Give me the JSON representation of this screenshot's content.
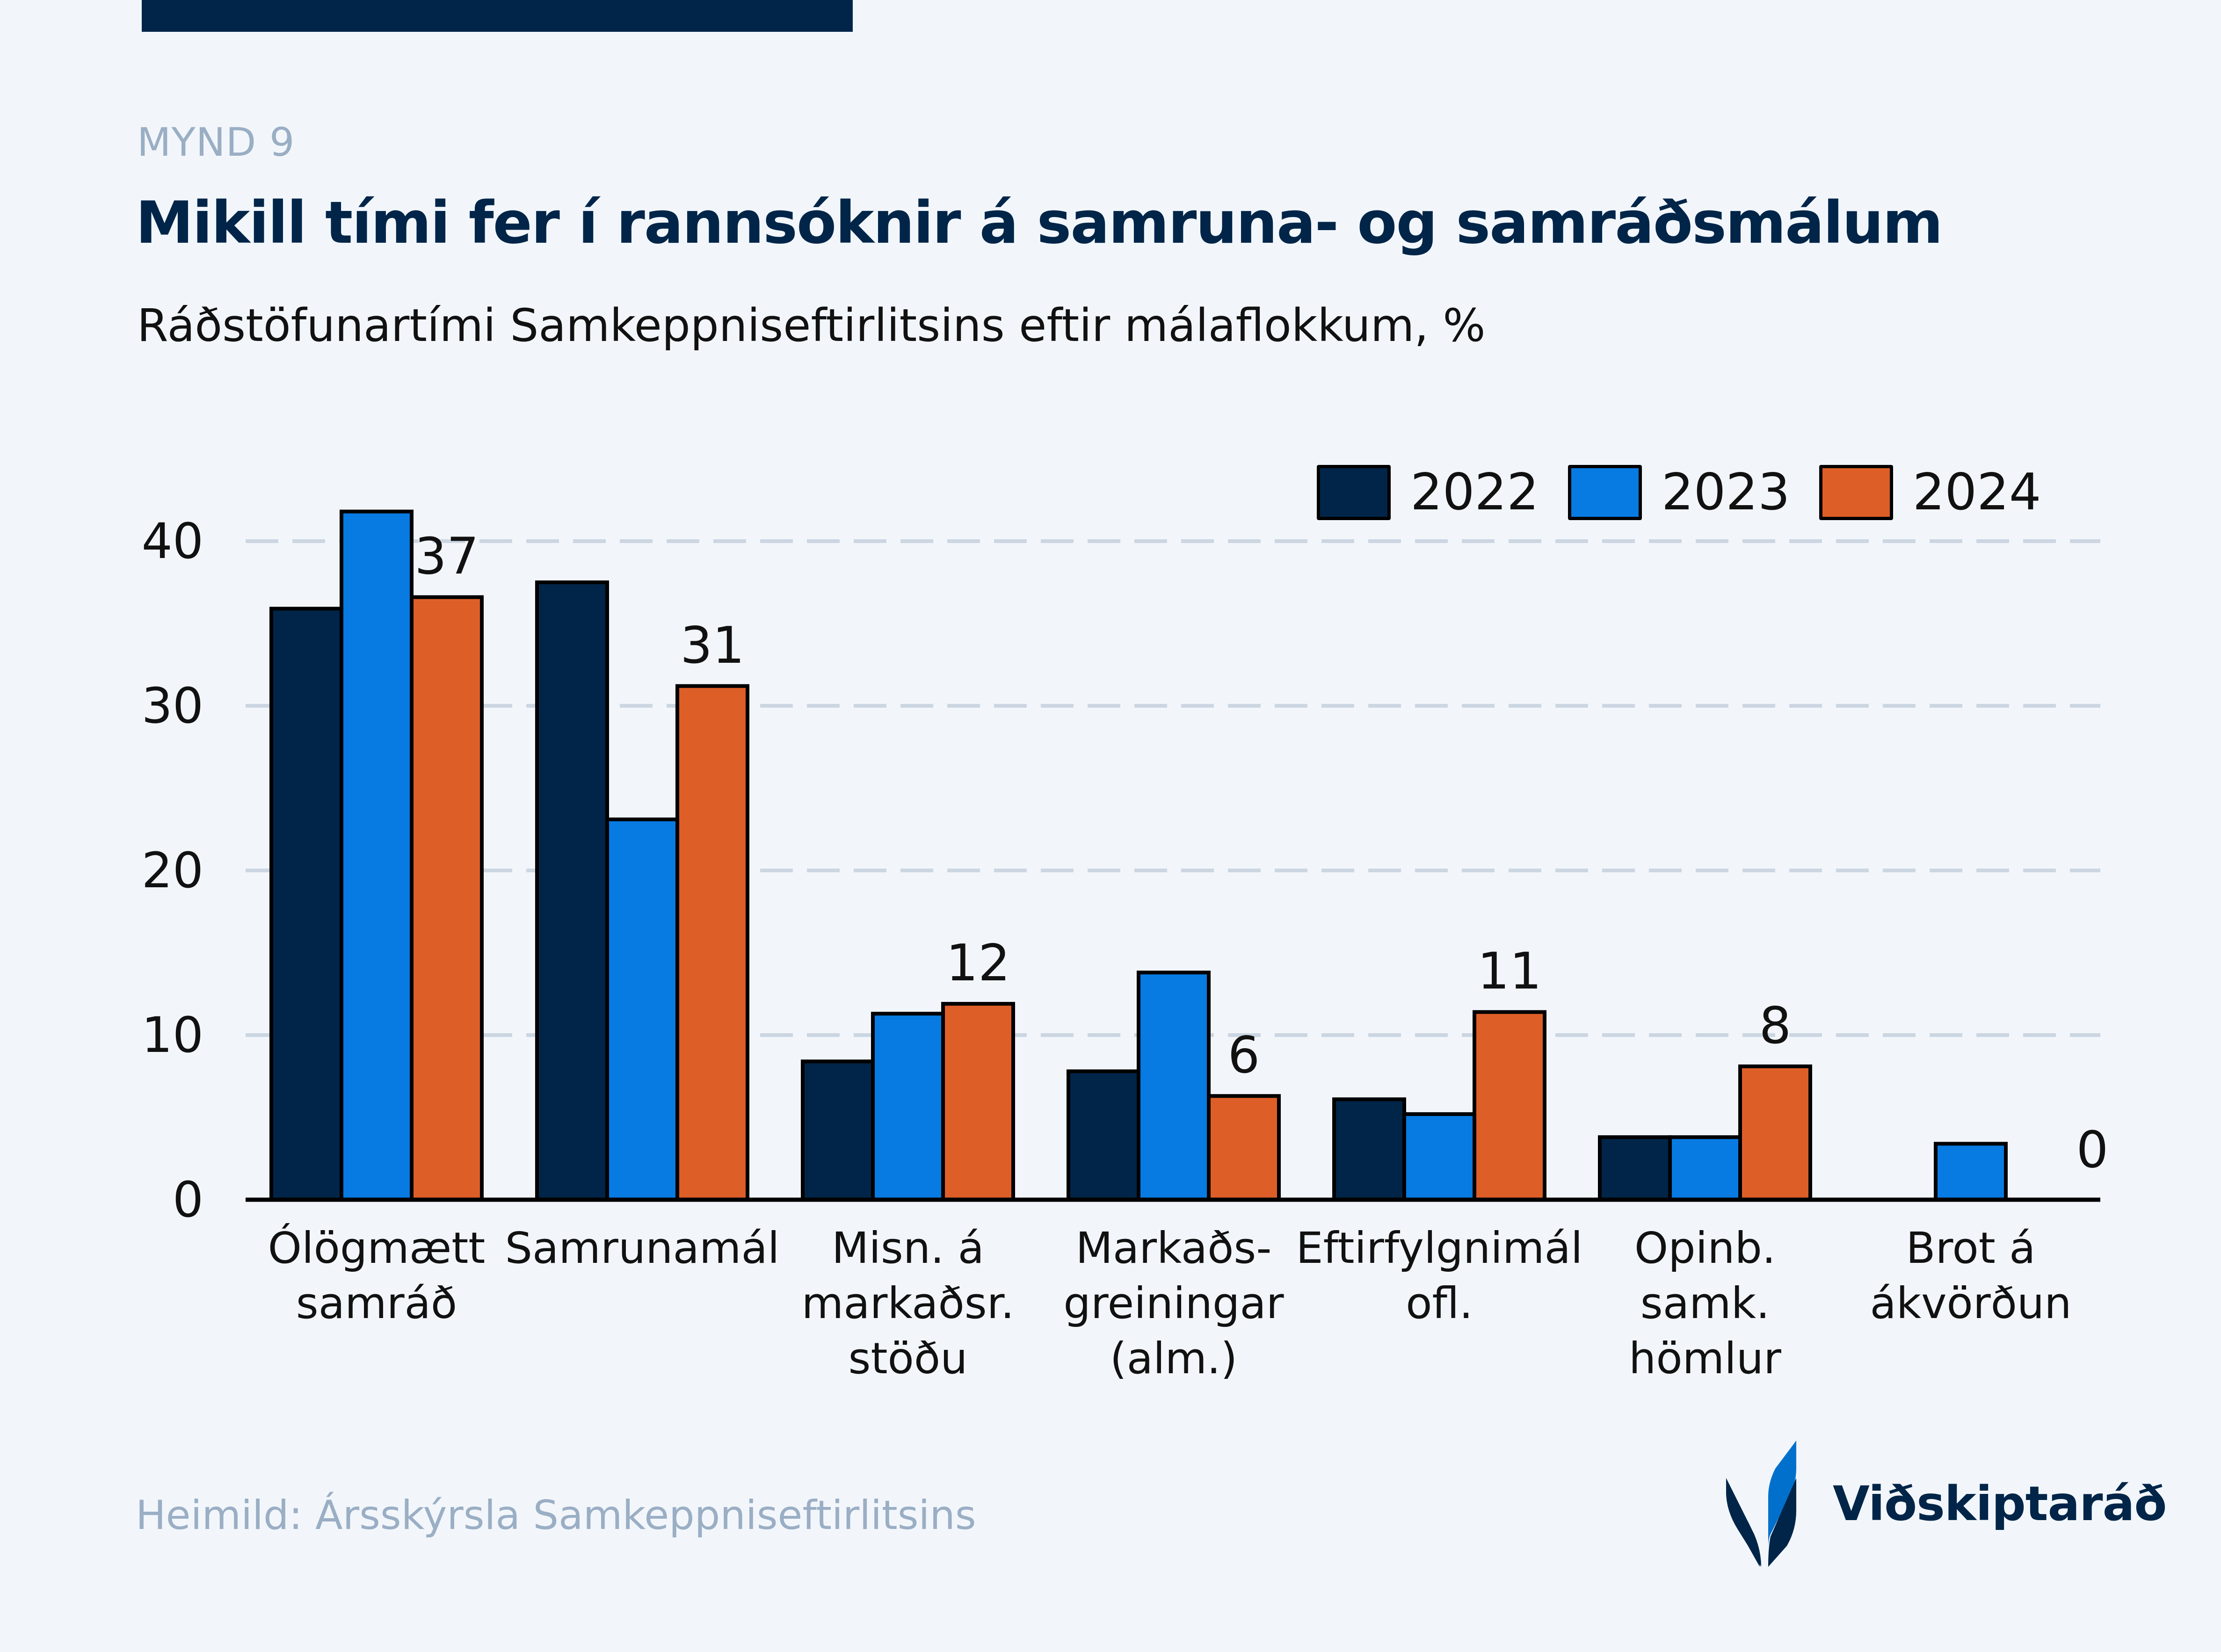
{
  "header": {
    "kicker": "MYND 9",
    "title": "Mikill tími fer í rannsóknir á samruna- og samráðsmálum",
    "subtitle": "Ráðstöfunartími Samkeppniseftirlitsins eftir málaflokkum, %"
  },
  "footer": {
    "source": "Heimild: Ársskýrsla Samkeppniseftirlitsins",
    "logo_text": "Viðskiptaráð"
  },
  "colors": {
    "background": "#f2f6fb",
    "navy": "#002548",
    "s2022": "#002548",
    "s2023": "#077be2",
    "s2024": "#de5e28",
    "grid": "#cbd6e2"
  },
  "chart_data": {
    "type": "bar",
    "title": "Mikill tími fer í rannsóknir á samruna- og samráðsmálum",
    "subtitle": "Ráðstöfunartími Samkeppniseftirlitsins eftir málaflokkum, %",
    "xlabel": "",
    "ylabel": "",
    "ylim": [
      0,
      42
    ],
    "yticks": [
      0,
      10,
      20,
      30,
      40
    ],
    "grid": true,
    "legend_position": "top-right",
    "categories": [
      [
        "Ólögmætt",
        "samráð"
      ],
      [
        "Samrunamál"
      ],
      [
        "Misn. á",
        "markaðsr.",
        "stöðu"
      ],
      [
        "Markaðs-",
        "greiningar",
        "(alm.)"
      ],
      [
        "Eftirfylgnimál",
        "ofl."
      ],
      [
        "Opinb.",
        "samk.",
        "hömlur"
      ],
      [
        "Brot á",
        "ákvörðun"
      ]
    ],
    "series": [
      {
        "name": "2022",
        "color": "#002548",
        "values": [
          35.9,
          37.5,
          8.4,
          7.8,
          6.1,
          3.8,
          0
        ]
      },
      {
        "name": "2023",
        "color": "#077be2",
        "values": [
          41.8,
          23.1,
          11.3,
          13.8,
          5.2,
          3.8,
          3.4
        ]
      },
      {
        "name": "2024",
        "color": "#de5e28",
        "values": [
          36.6,
          31.2,
          11.9,
          6.3,
          11.4,
          8.1,
          0
        ]
      }
    ],
    "data_labels": {
      "series": "2024",
      "values": [
        "37",
        "31",
        "12",
        "6",
        "11",
        "8",
        "0"
      ]
    }
  }
}
